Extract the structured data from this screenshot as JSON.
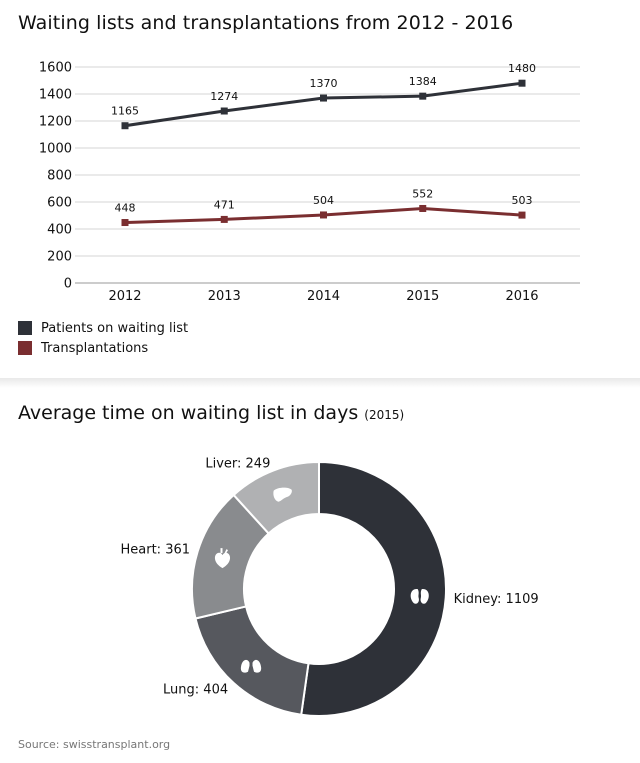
{
  "line_chart": {
    "title": "Waiting lists and transplantations from 2012 - 2016"
  },
  "pie_chart": {
    "title_main": "Average time on waiting list in days",
    "title_suffix": "(2015)"
  },
  "source": "Source: swisstransplant.org",
  "chart_data": [
    {
      "type": "line",
      "title": "Waiting lists and transplantations from 2012 - 2016",
      "xlabel": "",
      "ylabel": "",
      "x": [
        "2012",
        "2013",
        "2014",
        "2015",
        "2016"
      ],
      "yticks": [
        0,
        200,
        400,
        600,
        800,
        1000,
        1200,
        1400,
        1600
      ],
      "ylim": [
        0,
        1600
      ],
      "grid": true,
      "legend_position": "bottom-left",
      "series": [
        {
          "name": "Patients on waiting list",
          "values": [
            1165,
            1274,
            1370,
            1384,
            1480
          ],
          "color": "#2e3138"
        },
        {
          "name": "Transplantations",
          "values": [
            448,
            471,
            504,
            552,
            503
          ],
          "color": "#7a2e30"
        }
      ]
    },
    {
      "type": "pie",
      "title": "Average time on waiting list in days (2015)",
      "donut": true,
      "slices": [
        {
          "label": "Kidney",
          "value": 1109,
          "color": "#2e3138",
          "icon": "kidney-icon"
        },
        {
          "label": "Lung",
          "value": 404,
          "color": "#56585e",
          "icon": "lungs-icon"
        },
        {
          "label": "Heart",
          "value": 361,
          "color": "#898b8e",
          "icon": "heart-icon"
        },
        {
          "label": "Liver",
          "value": 249,
          "color": "#b0b1b3",
          "icon": "liver-icon"
        }
      ]
    }
  ]
}
